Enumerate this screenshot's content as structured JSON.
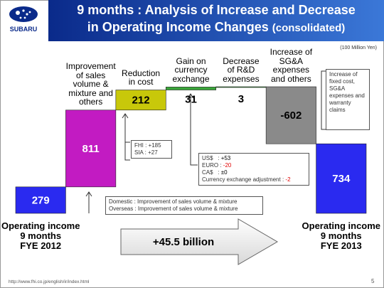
{
  "header": {
    "logo": "SUBARU",
    "title_line1": "9 months : Analysis of Increase and Decrease",
    "title_line2": "in Operating Income Changes",
    "title_note": "(consolidated)"
  },
  "chart_data": {
    "type": "waterfall",
    "unit": "(100 Million Yen)",
    "categories": [
      "Operating income\n9 months\nFYE 2012",
      "Improvement\nof sales\nvolume &\nmixture and\nothers",
      "Reduction\nin cost",
      "Gain on\ncurrency\nexchange",
      "Decrease\nof R&D\nexpenses",
      "Increase of\nSG&A\nexpenses\nand others",
      "Operating income\n9 months\nFYE 2013"
    ],
    "values": [
      279,
      811,
      212,
      31,
      3,
      -602,
      734
    ],
    "is_total": [
      true,
      false,
      false,
      false,
      false,
      false,
      true
    ],
    "colors": [
      "#2a2af0",
      "#c21bc2",
      "#c8c80a",
      "#3aa63a",
      "#3aa63a",
      "#8a8a8a",
      "#2a2af0"
    ],
    "label_colors": [
      "#ffffff",
      "#ffffff",
      "#000000",
      "#000000",
      "#000000",
      "#000000",
      "#ffffff"
    ],
    "annotations": {
      "sales_breakdown": [
        "Domestic : Improvement of sales volume & mixture",
        "Overseas : Improvement of sales volume & mixture"
      ],
      "cost_breakdown": [
        "FHI : +185",
        "SIA : +27"
      ],
      "currency_breakdown": [
        {
          "label": "US$   :",
          "value": "+53",
          "color": "#000000"
        },
        {
          "label": "EURO :",
          "value": "-20",
          "color": "#e00000"
        },
        {
          "label": "CA$   :",
          "value": "±0",
          "color": "#000000"
        },
        {
          "label": "Currency exchange adjustment :",
          "value": "-2",
          "color": "#e00000"
        }
      ],
      "sga_note": "Increase of fixed cost, SG&A expenses and warranty claims"
    },
    "change_label": "+45.5 billion"
  },
  "footer": {
    "url": "http://www.fhi.co.jp/english/ir/index.html",
    "page": "5"
  }
}
